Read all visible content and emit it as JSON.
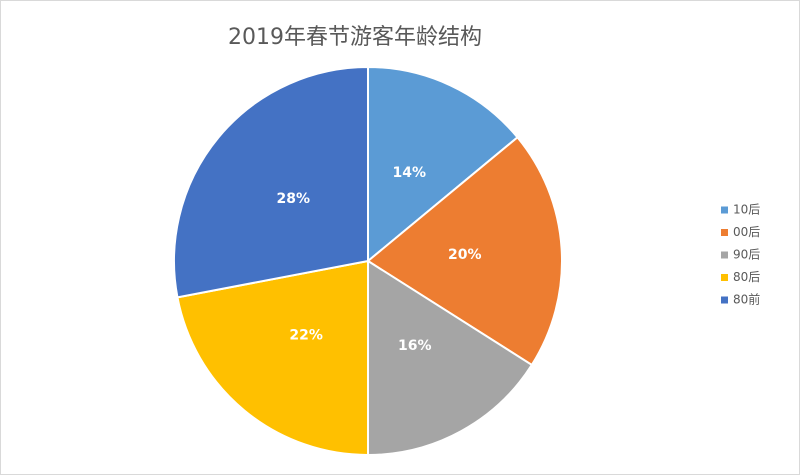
{
  "chart_data": {
    "type": "pie",
    "title": "2019年春节游客年龄结构",
    "categories": [
      "10后",
      "00后",
      "90后",
      "80后",
      "80前"
    ],
    "values": [
      14,
      20,
      16,
      22,
      28
    ],
    "value_labels": [
      "14%",
      "20%",
      "16%",
      "22%",
      "28%"
    ],
    "colors": [
      "#5b9bd5",
      "#ed7d31",
      "#a5a5a5",
      "#ffc000",
      "#4472c4"
    ],
    "legend": "right"
  }
}
